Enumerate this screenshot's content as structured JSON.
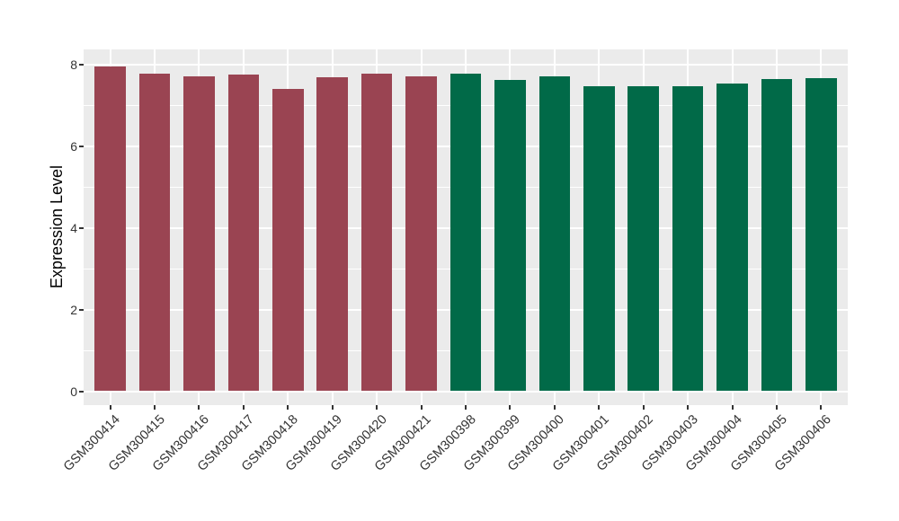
{
  "chart_data": {
    "type": "bar",
    "title": "",
    "xlabel": "",
    "ylabel": "Expression Level",
    "categories": [
      "GSM300414",
      "GSM300415",
      "GSM300416",
      "GSM300417",
      "GSM300418",
      "GSM300419",
      "GSM300420",
      "GSM300421",
      "GSM300398",
      "GSM300399",
      "GSM300400",
      "GSM300401",
      "GSM300402",
      "GSM300403",
      "GSM300404",
      "GSM300405",
      "GSM300406"
    ],
    "values": [
      7.95,
      7.78,
      7.71,
      7.74,
      7.4,
      7.69,
      7.78,
      7.7,
      7.77,
      7.62,
      7.7,
      7.47,
      7.47,
      7.47,
      7.53,
      7.63,
      7.65
    ],
    "bar_colors": [
      "#9A4452",
      "#9A4452",
      "#9A4452",
      "#9A4452",
      "#9A4452",
      "#9A4452",
      "#9A4452",
      "#9A4452",
      "#016A48",
      "#016A48",
      "#016A48",
      "#016A48",
      "#016A48",
      "#016A48",
      "#016A48",
      "#016A48",
      "#016A48"
    ],
    "groups": [
      {
        "name": "maroon-group",
        "color": "#9A4452",
        "first": "GSM300414",
        "last": "GSM300421",
        "count": 8
      },
      {
        "name": "green-group",
        "color": "#016A48",
        "first": "GSM300398",
        "last": "GSM300406",
        "count": 9
      }
    ],
    "yticks": [
      "0",
      "2",
      "4",
      "6",
      "8"
    ],
    "ytick_values": [
      0,
      2,
      4,
      6,
      8
    ],
    "yminor_values": [
      1,
      3,
      5,
      7
    ],
    "ylim": [
      -0.4,
      8.36
    ],
    "legend": "none",
    "grid": "on",
    "x_label_rotation_deg": 45,
    "panel_bg": "#EBEBEB",
    "grid_color": "#FFFFFF",
    "axis_text_color": "#333333",
    "axis_title_color": "#000000",
    "figure_bg": "#FFFFFF"
  }
}
